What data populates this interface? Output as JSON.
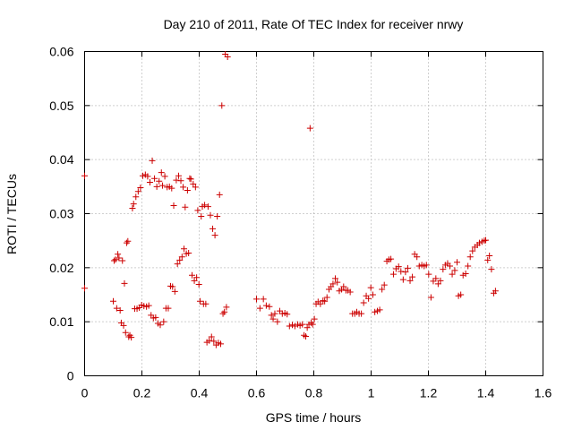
{
  "chart_data": {
    "type": "scatter",
    "title": "Day 210 of 2011, Rate Of TEC Index for receiver nrwy",
    "xlabel": "GPS time / hours",
    "ylabel": "ROTI / TECUs",
    "xlim": [
      0,
      1.6
    ],
    "ylim": [
      0,
      0.06
    ],
    "xticks": [
      "0",
      "0.2",
      "0.4",
      "0.6",
      "0.8",
      "1",
      "1.2",
      "1.4",
      "1.6"
    ],
    "yticks": [
      "0",
      "0.01",
      "0.02",
      "0.03",
      "0.04",
      "0.05",
      "0.06"
    ],
    "grid": true,
    "marker": "+",
    "color": "#cc0000",
    "series": [
      {
        "name": "ROTI",
        "points": [
          [
            0.0,
            0.037
          ],
          [
            0.0,
            0.0162
          ],
          [
            0.1,
            0.0138
          ],
          [
            0.103,
            0.0213
          ],
          [
            0.108,
            0.0215
          ],
          [
            0.112,
            0.0125
          ],
          [
            0.116,
            0.0225
          ],
          [
            0.12,
            0.0218
          ],
          [
            0.124,
            0.0121
          ],
          [
            0.128,
            0.0098
          ],
          [
            0.132,
            0.0213
          ],
          [
            0.136,
            0.0093
          ],
          [
            0.139,
            0.0171
          ],
          [
            0.143,
            0.008
          ],
          [
            0.147,
            0.0246
          ],
          [
            0.151,
            0.0249
          ],
          [
            0.154,
            0.0072
          ],
          [
            0.158,
            0.0075
          ],
          [
            0.163,
            0.0071
          ],
          [
            0.167,
            0.031
          ],
          [
            0.171,
            0.0318
          ],
          [
            0.175,
            0.0124
          ],
          [
            0.179,
            0.0331
          ],
          [
            0.183,
            0.0124
          ],
          [
            0.187,
            0.0341
          ],
          [
            0.191,
            0.0126
          ],
          [
            0.195,
            0.0348
          ],
          [
            0.199,
            0.0131
          ],
          [
            0.203,
            0.037
          ],
          [
            0.207,
            0.0129
          ],
          [
            0.212,
            0.0372
          ],
          [
            0.216,
            0.0128
          ],
          [
            0.22,
            0.0369
          ],
          [
            0.224,
            0.013
          ],
          [
            0.228,
            0.0358
          ],
          [
            0.232,
            0.0112
          ],
          [
            0.236,
            0.0398
          ],
          [
            0.24,
            0.0107
          ],
          [
            0.244,
            0.0365
          ],
          [
            0.248,
            0.0108
          ],
          [
            0.252,
            0.035
          ],
          [
            0.256,
            0.0097
          ],
          [
            0.26,
            0.036
          ],
          [
            0.264,
            0.0094
          ],
          [
            0.268,
            0.0376
          ],
          [
            0.272,
            0.0352
          ],
          [
            0.276,
            0.01
          ],
          [
            0.28,
            0.0369
          ],
          [
            0.284,
            0.0125
          ],
          [
            0.288,
            0.0349
          ],
          [
            0.292,
            0.0125
          ],
          [
            0.296,
            0.035
          ],
          [
            0.3,
            0.0166
          ],
          [
            0.304,
            0.0347
          ],
          [
            0.307,
            0.0165
          ],
          [
            0.311,
            0.0315
          ],
          [
            0.315,
            0.0156
          ],
          [
            0.32,
            0.0362
          ],
          [
            0.324,
            0.0207
          ],
          [
            0.328,
            0.037
          ],
          [
            0.332,
            0.0214
          ],
          [
            0.336,
            0.0361
          ],
          [
            0.34,
            0.022
          ],
          [
            0.344,
            0.0349
          ],
          [
            0.347,
            0.0235
          ],
          [
            0.351,
            0.0312
          ],
          [
            0.355,
            0.0226
          ],
          [
            0.359,
            0.0343
          ],
          [
            0.363,
            0.0227
          ],
          [
            0.367,
            0.0365
          ],
          [
            0.371,
            0.0364
          ],
          [
            0.375,
            0.0186
          ],
          [
            0.379,
            0.0355
          ],
          [
            0.383,
            0.0176
          ],
          [
            0.387,
            0.0349
          ],
          [
            0.391,
            0.0182
          ],
          [
            0.395,
            0.0306
          ],
          [
            0.399,
            0.0169
          ],
          [
            0.403,
            0.0138
          ],
          [
            0.407,
            0.0295
          ],
          [
            0.411,
            0.0313
          ],
          [
            0.415,
            0.0133
          ],
          [
            0.419,
            0.0316
          ],
          [
            0.423,
            0.0133
          ],
          [
            0.427,
            0.0062
          ],
          [
            0.431,
            0.0313
          ],
          [
            0.435,
            0.0065
          ],
          [
            0.439,
            0.0297
          ],
          [
            0.443,
            0.0072
          ],
          [
            0.447,
            0.0272
          ],
          [
            0.451,
            0.0064
          ],
          [
            0.455,
            0.026
          ],
          [
            0.459,
            0.0057
          ],
          [
            0.463,
            0.0295
          ],
          [
            0.467,
            0.0061
          ],
          [
            0.471,
            0.0335
          ],
          [
            0.475,
            0.0059
          ],
          [
            0.479,
            0.05
          ],
          [
            0.483,
            0.0115
          ],
          [
            0.488,
            0.0118
          ],
          [
            0.491,
            0.0595
          ],
          [
            0.495,
            0.0127
          ],
          [
            0.499,
            0.059
          ],
          [
            0.6,
            0.0142
          ],
          [
            0.612,
            0.0125
          ],
          [
            0.624,
            0.0142
          ],
          [
            0.634,
            0.013
          ],
          [
            0.645,
            0.0128
          ],
          [
            0.652,
            0.0112
          ],
          [
            0.658,
            0.0105
          ],
          [
            0.664,
            0.0115
          ],
          [
            0.673,
            0.01
          ],
          [
            0.681,
            0.012
          ],
          [
            0.69,
            0.0115
          ],
          [
            0.699,
            0.0116
          ],
          [
            0.707,
            0.0114
          ],
          [
            0.715,
            0.0092
          ],
          [
            0.725,
            0.0094
          ],
          [
            0.734,
            0.0092
          ],
          [
            0.744,
            0.0095
          ],
          [
            0.752,
            0.0093
          ],
          [
            0.76,
            0.0095
          ],
          [
            0.766,
            0.0075
          ],
          [
            0.772,
            0.0073
          ],
          [
            0.777,
            0.0089
          ],
          [
            0.783,
            0.0095
          ],
          [
            0.787,
            0.0458
          ],
          [
            0.791,
            0.0098
          ],
          [
            0.796,
            0.0095
          ],
          [
            0.802,
            0.0105
          ],
          [
            0.808,
            0.0133
          ],
          [
            0.815,
            0.0137
          ],
          [
            0.823,
            0.0133
          ],
          [
            0.832,
            0.0139
          ],
          [
            0.838,
            0.0138
          ],
          [
            0.846,
            0.0145
          ],
          [
            0.853,
            0.016
          ],
          [
            0.86,
            0.0165
          ],
          [
            0.867,
            0.017
          ],
          [
            0.875,
            0.018
          ],
          [
            0.882,
            0.0173
          ],
          [
            0.889,
            0.0157
          ],
          [
            0.897,
            0.016
          ],
          [
            0.904,
            0.0165
          ],
          [
            0.912,
            0.0158
          ],
          [
            0.919,
            0.0158
          ],
          [
            0.927,
            0.0155
          ],
          [
            0.935,
            0.0115
          ],
          [
            0.943,
            0.0115
          ],
          [
            0.95,
            0.0118
          ],
          [
            0.958,
            0.0115
          ],
          [
            0.966,
            0.0115
          ],
          [
            0.974,
            0.0135
          ],
          [
            0.983,
            0.0148
          ],
          [
            0.991,
            0.0143
          ],
          [
            0.999,
            0.0163
          ],
          [
            1.006,
            0.015
          ],
          [
            1.013,
            0.0118
          ],
          [
            1.022,
            0.012
          ],
          [
            1.03,
            0.0122
          ],
          [
            1.038,
            0.016
          ],
          [
            1.046,
            0.0168
          ],
          [
            1.055,
            0.0212
          ],
          [
            1.062,
            0.0215
          ],
          [
            1.069,
            0.0216
          ],
          [
            1.078,
            0.0188
          ],
          [
            1.087,
            0.0198
          ],
          [
            1.096,
            0.0202
          ],
          [
            1.104,
            0.0193
          ],
          [
            1.112,
            0.0178
          ],
          [
            1.12,
            0.0192
          ],
          [
            1.128,
            0.0199
          ],
          [
            1.136,
            0.0176
          ],
          [
            1.144,
            0.0183
          ],
          [
            1.152,
            0.0225
          ],
          [
            1.16,
            0.022
          ],
          [
            1.168,
            0.0203
          ],
          [
            1.177,
            0.0205
          ],
          [
            1.185,
            0.0203
          ],
          [
            1.193,
            0.0205
          ],
          [
            1.201,
            0.0188
          ],
          [
            1.209,
            0.0145
          ],
          [
            1.217,
            0.0175
          ],
          [
            1.226,
            0.018
          ],
          [
            1.234,
            0.017
          ],
          [
            1.242,
            0.0176
          ],
          [
            1.251,
            0.0197
          ],
          [
            1.259,
            0.0205
          ],
          [
            1.267,
            0.0208
          ],
          [
            1.275,
            0.0203
          ],
          [
            1.283,
            0.0188
          ],
          [
            1.292,
            0.0195
          ],
          [
            1.3,
            0.021
          ],
          [
            1.305,
            0.0148
          ],
          [
            1.313,
            0.015
          ],
          [
            1.321,
            0.0186
          ],
          [
            1.33,
            0.0189
          ],
          [
            1.338,
            0.0203
          ],
          [
            1.346,
            0.022
          ],
          [
            1.354,
            0.0231
          ],
          [
            1.362,
            0.0238
          ],
          [
            1.371,
            0.0242
          ],
          [
            1.378,
            0.0246
          ],
          [
            1.387,
            0.0248
          ],
          [
            1.395,
            0.025
          ],
          [
            1.4,
            0.0251
          ],
          [
            1.407,
            0.0214
          ],
          [
            1.413,
            0.0222
          ],
          [
            1.42,
            0.0197
          ],
          [
            1.428,
            0.0153
          ],
          [
            1.434,
            0.0157
          ]
        ]
      }
    ]
  }
}
